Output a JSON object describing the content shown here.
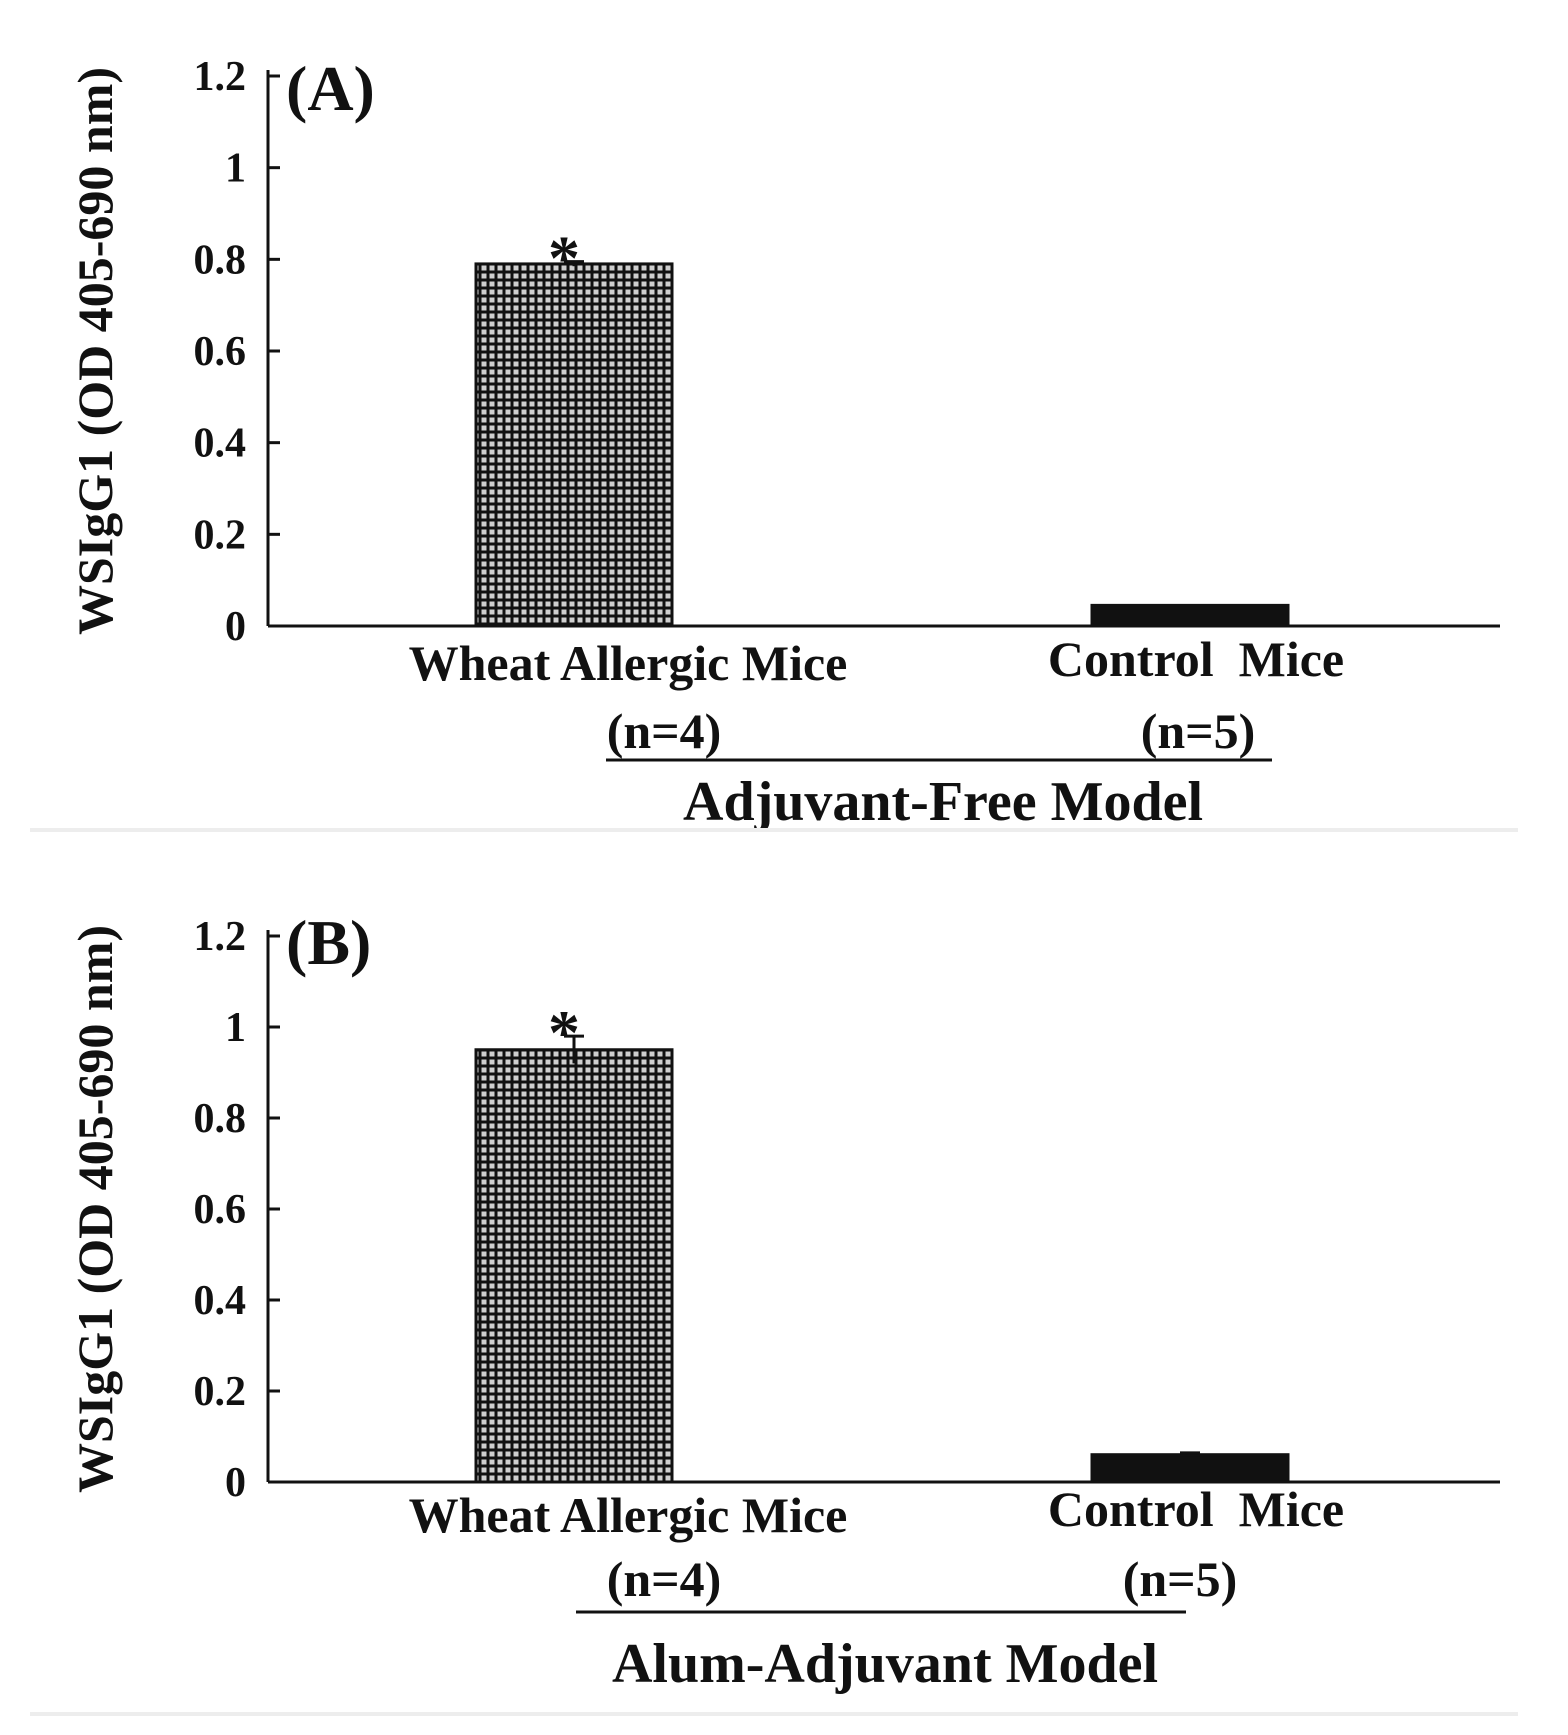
{
  "chart_data": [
    {
      "type": "bar",
      "panel_label": "(A)",
      "ylabel": "WSIgG1 (OD 405-690 nm)",
      "ylim": [
        0,
        1.2
      ],
      "yticks": [
        0,
        0.2,
        0.4,
        0.6,
        0.8,
        1,
        1.2
      ],
      "ytick_labels": [
        "0",
        "0.2",
        "0.4",
        "0.6",
        "0.8",
        "1",
        "1.2"
      ],
      "categories": [
        {
          "name": "Wheat Allergic Mice",
          "n": "(n=4)"
        },
        {
          "name": "Control  Mice",
          "n": "(n=5)"
        }
      ],
      "values": [
        0.79,
        0.045
      ],
      "errors": [
        0.005,
        0.0
      ],
      "significance": [
        "*",
        ""
      ],
      "bar_styles": [
        "checkered",
        "solid"
      ],
      "group_label": "Adjuvant-Free Model",
      "grid": false,
      "legend": "none"
    },
    {
      "type": "bar",
      "panel_label": "(B)",
      "ylabel": "WSIgG1 (OD 405-690 nm)",
      "ylim": [
        0,
        1.2
      ],
      "yticks": [
        0,
        0.2,
        0.4,
        0.6,
        0.8,
        1,
        1.2
      ],
      "ytick_labels": [
        "0",
        "0.2",
        "0.4",
        "0.6",
        "0.8",
        "1",
        "1.2"
      ],
      "categories": [
        {
          "name": "Wheat Allergic Mice",
          "n": "(n=4)"
        },
        {
          "name": "Control  Mice",
          "n": "(n=5)"
        }
      ],
      "values": [
        0.95,
        0.06
      ],
      "errors": [
        0.03,
        0.004
      ],
      "significance": [
        "*",
        ""
      ],
      "bar_styles": [
        "checkered",
        "solid"
      ],
      "group_label": "Alum-Adjuvant Model",
      "grid": false,
      "legend": "none"
    }
  ],
  "colors": {
    "bar_dark": "#111111",
    "bar_grid": "#cfcfcf",
    "axis": "#111111",
    "divider": "#ededed"
  }
}
